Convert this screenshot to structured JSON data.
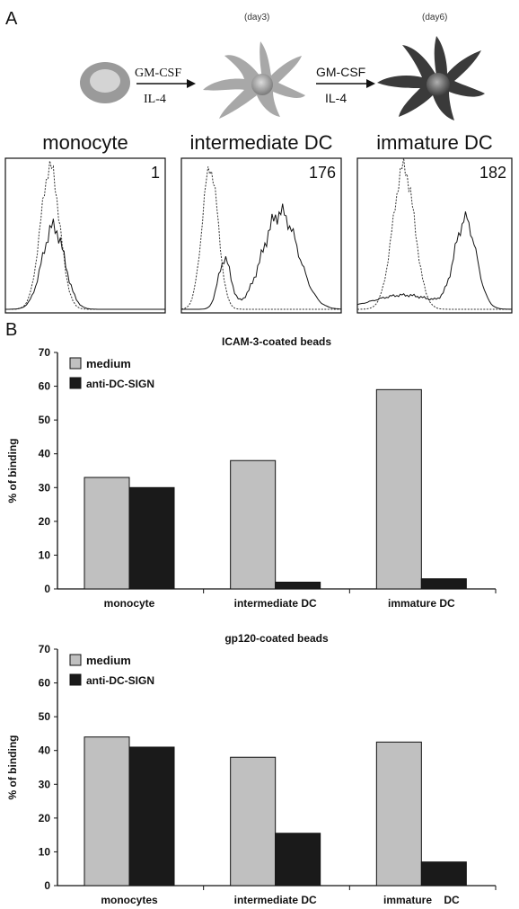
{
  "panel_a_label": "A",
  "panel_b_label": "B",
  "diagram": {
    "day3": "(day3)",
    "day6": "(day6)",
    "arrow1_top": "GM-CSF",
    "arrow1_bottom": "IL-4",
    "arrow2_top": "GM-CSF",
    "arrow2_bottom": "IL-4"
  },
  "histograms": [
    {
      "title": "monocyte",
      "value": "1"
    },
    {
      "title": "intermediate DC",
      "value": "176"
    },
    {
      "title": "immature DC",
      "value": "182"
    }
  ],
  "colors": {
    "medium": "#c0c0c0",
    "anti": "#1a1a1a"
  },
  "chart_data": [
    {
      "type": "bar",
      "title": "ICAM-3-coated beads",
      "categories": [
        "monocyte",
        "intermediate DC",
        "immature DC"
      ],
      "series": [
        {
          "name": "medium",
          "values": [
            33,
            38,
            59
          ]
        },
        {
          "name": "anti-DC-SIGN",
          "values": [
            30,
            2,
            3
          ]
        }
      ],
      "xlabel": "",
      "ylabel": "% of binding",
      "ylim": [
        0,
        70
      ],
      "yticks": [
        "0",
        "10",
        "20",
        "30",
        "40",
        "50",
        "60",
        "70"
      ],
      "legend": "top-left",
      "grid": false
    },
    {
      "type": "bar",
      "title": "gp120-coated beads",
      "categories": [
        "monocytes",
        "intermediate DC",
        "immature    DC"
      ],
      "series": [
        {
          "name": "medium",
          "values": [
            44,
            38,
            42.5
          ]
        },
        {
          "name": "anti-DC-SIGN",
          "values": [
            41,
            15.5,
            7
          ]
        }
      ],
      "xlabel": "",
      "ylabel": "% of binding",
      "ylim": [
        0,
        70
      ],
      "yticks": [
        "0",
        "10",
        "20",
        "30",
        "40",
        "50",
        "60",
        "70"
      ],
      "legend": "top-left",
      "grid": false
    }
  ]
}
